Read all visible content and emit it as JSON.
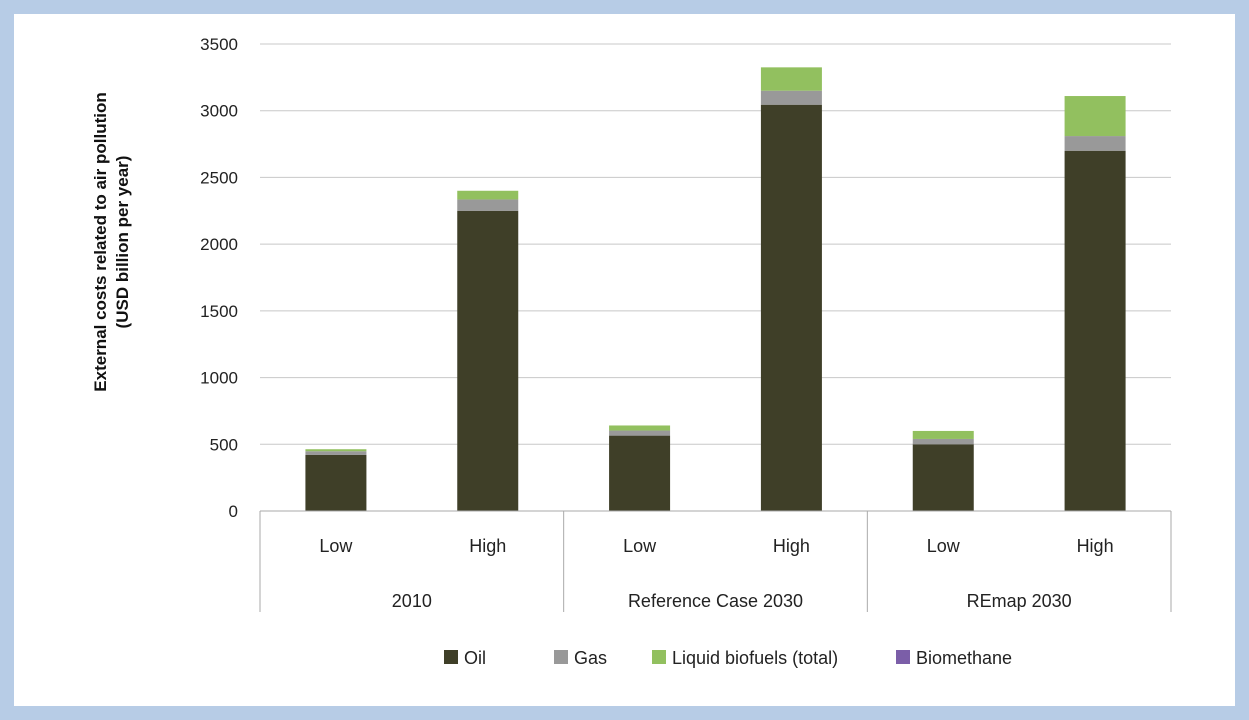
{
  "chart_data": {
    "type": "bar",
    "stacked": true,
    "groups": [
      {
        "label": "2010",
        "categories": [
          "Low",
          "High"
        ]
      },
      {
        "label": "Reference Case 2030",
        "categories": [
          "Low",
          "High"
        ]
      },
      {
        "label": "REmap 2030",
        "categories": [
          "Low",
          "High"
        ]
      }
    ],
    "series": [
      {
        "name": "Oil",
        "color": "#3f3f28",
        "values": [
          420,
          2250,
          565,
          3045,
          500,
          2700
        ]
      },
      {
        "name": "Gas",
        "color": "#999999",
        "values": [
          28,
          85,
          38,
          105,
          40,
          110
        ]
      },
      {
        "name": "Liquid biofuels (total)",
        "color": "#92c05f",
        "values": [
          15,
          65,
          38,
          175,
          60,
          300
        ]
      },
      {
        "name": "Biomethane",
        "color": "#7b5ea8",
        "values": [
          0,
          0,
          0,
          0,
          0,
          0
        ]
      }
    ],
    "ylabel_lines": [
      "External costs related to air pollution",
      "(USD billion per year)"
    ],
    "ylim": [
      0,
      3500
    ],
    "yticks": [
      0,
      500,
      1000,
      1500,
      2000,
      2500,
      3000,
      3500
    ],
    "grid": true,
    "legend_position": "bottom"
  }
}
